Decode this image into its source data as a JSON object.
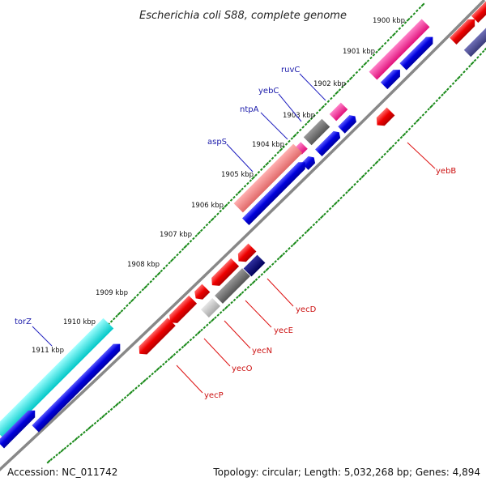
{
  "title": "Escherichia coli S88, complete genome",
  "ticks": [
    "1900 kbp",
    "1901 kbp",
    "1902 kbp",
    "1903 kbp",
    "1904 kbp",
    "1905 kbp",
    "1906 kbp",
    "1907 kbp",
    "1908 kbp",
    "1909 kbp",
    "1910 kbp",
    "1911 kbp"
  ],
  "forward_gene_labels": [
    "ruvC",
    "yebC",
    "ntpA",
    "aspS",
    "torZ"
  ],
  "reverse_gene_labels": [
    "yebB",
    "yecD",
    "yecE",
    "yecN",
    "yecO",
    "yecP"
  ],
  "footer": {
    "accession": "Accession: NC_011742",
    "summary": "Topology: circular; Length: 5,032,268 bp; Genes: 4,894"
  },
  "colors": {
    "backbone": "#888888",
    "tick_dots": "#1a8a1a",
    "forward_label": "#1a1aaa",
    "reverse_label": "#cc1111",
    "forward_gene": "#0000dd",
    "reverse_gene": "#ee0000",
    "trna": "#ff2a9a",
    "hypothetical": "#666666",
    "rrna": "#00e5e5",
    "light_pink": "#f08080",
    "light_grey": "#bbbbbb",
    "navy": "#000080"
  }
}
